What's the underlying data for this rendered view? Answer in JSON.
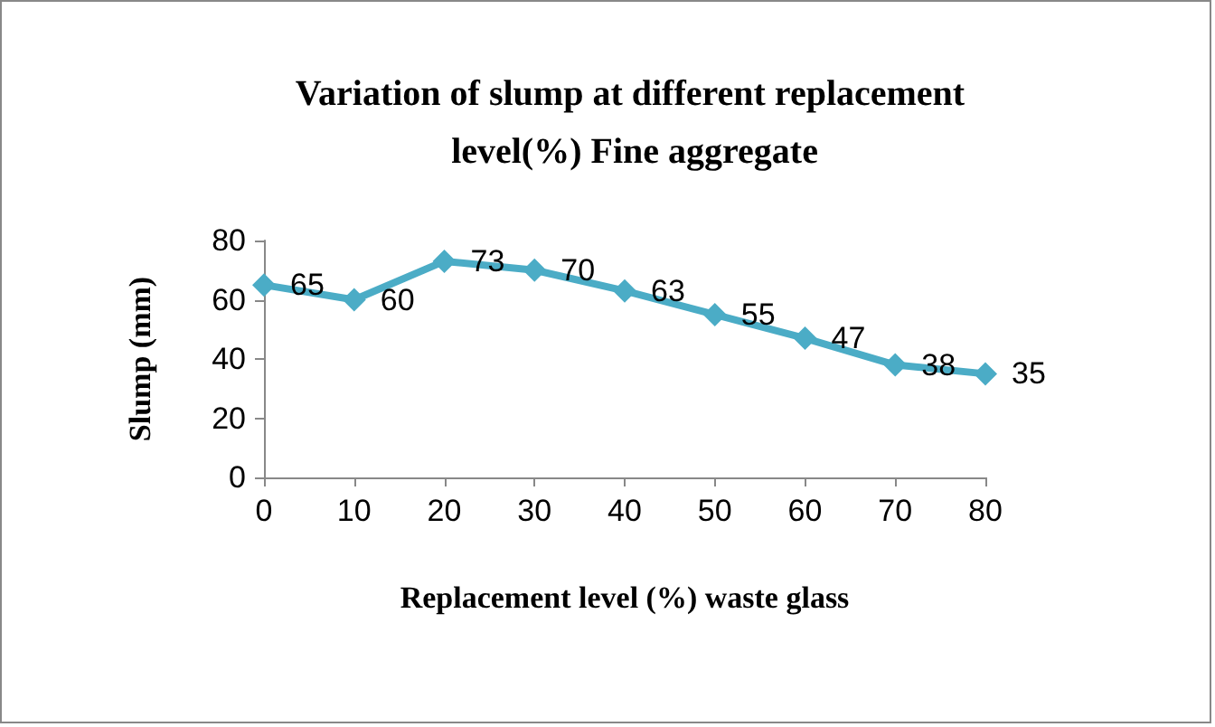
{
  "chart_data": {
    "type": "line",
    "title": "Variation of slump at different replacement level(%) Fine aggregate",
    "xlabel": "Replacement level (%) waste glass",
    "ylabel": "Slump (mm)",
    "x": [
      0,
      10,
      20,
      30,
      40,
      50,
      60,
      70,
      80
    ],
    "series": [
      {
        "color": "#4bacc6",
        "values": [
          65,
          60,
          73,
          70,
          63,
          55,
          47,
          38,
          35
        ]
      }
    ],
    "xlim": [
      0,
      80
    ],
    "xticks": [
      0,
      10,
      20,
      30,
      40,
      50,
      60,
      70,
      80
    ],
    "ylim": [
      0,
      80
    ],
    "yticks": [
      0,
      20,
      40,
      60,
      80
    ],
    "data_labels": true,
    "marker": "diamond",
    "line_style": "solid",
    "grid": false
  }
}
